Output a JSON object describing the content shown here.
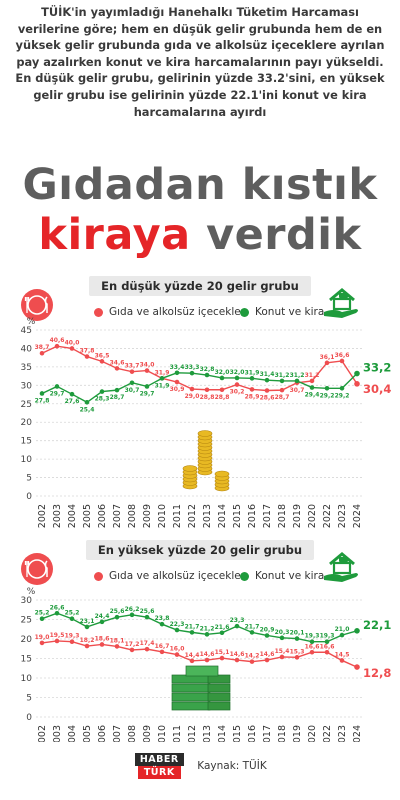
{
  "intro_text": "TÜİK'in yayımladığı Hanehalkı Tüketim Harcaması verilerine göre; hem en düşük gelir grubunda hem de en yüksek gelir grubunda gıda ve alkolsüz içeceklere ayrılan pay azalırken konut ve kira harcamalarının payı yükseldi. En düşük gelir grubu, gelirinin yüzde 33.2'sini, en yüksek gelir grubu ise gelirinin yüzde 22.1'ini konut ve kira harcamalarına ayırdı",
  "headline_line1": "Gıdadan kıstık",
  "headline_red": "kiraya",
  "headline_rest": " verdik",
  "footer": {
    "logo_top": "HABER",
    "logo_bottom": "TÜRK",
    "source": "Kaynak: TÜİK"
  },
  "colors": {
    "food": "#ef4d4f",
    "housing": "#1e9b3c",
    "headline": "#5e5e5e",
    "accent": "#e52528"
  },
  "icons": [
    "fork-knife-icon",
    "house-hand-icon",
    "coin-stack-icon",
    "money-stack-icon"
  ],
  "chart_data": [
    {
      "type": "line",
      "title": "En düşük yüzde 20 gelir grubu",
      "ylabel": "%",
      "ylim": [
        0,
        45
      ],
      "yticks": [
        0,
        5,
        10,
        15,
        20,
        25,
        30,
        35,
        40,
        45
      ],
      "x": [
        "2002",
        "2003",
        "2004",
        "2005",
        "2006",
        "2007",
        "2008",
        "2009",
        "2010",
        "2011",
        "2012",
        "2013",
        "2014",
        "2015",
        "2016",
        "2017",
        "2018",
        "2019",
        "2020",
        "2022",
        "2023",
        "2024"
      ],
      "legend_placement": "top",
      "grid": true,
      "series": [
        {
          "name": "Gıda ve alkolsüz içecekler",
          "color": "#ef4d4f",
          "values": [
            38.7,
            40.6,
            40.0,
            37.8,
            36.5,
            34.6,
            33.7,
            34.0,
            31.9,
            30.9,
            29.0,
            28.8,
            28.8,
            30.2,
            28.9,
            28.6,
            28.7,
            30.7,
            31.2,
            36.1,
            36.6,
            30.4
          ],
          "labels": [
            "38,7",
            "40,6",
            "40,0",
            "37,8",
            "36,5",
            "34,6",
            "33,7",
            "34,0",
            "31,9",
            "30,9",
            "29,0",
            "28,8",
            "28,8",
            "30,2",
            "28,9",
            "28,6",
            "28,7",
            "30,7",
            "31,2",
            "36,1",
            "36,6",
            "30,4"
          ]
        },
        {
          "name": "Konut ve kira",
          "color": "#1e9b3c",
          "values": [
            27.8,
            29.7,
            27.6,
            25.4,
            28.3,
            28.7,
            30.7,
            29.7,
            31.9,
            33.4,
            33.3,
            32.8,
            32.0,
            32.0,
            31.9,
            31.4,
            31.2,
            31.2,
            29.4,
            29.2,
            29.2,
            33.2
          ],
          "labels": [
            "27,8",
            "29,7",
            "27,6",
            "25,4",
            "28,3",
            "28,7",
            "30,7",
            "29,7",
            "31,9",
            "33,4",
            "33,3",
            "32,8",
            "32,0",
            "32,0",
            "31,9",
            "31,4",
            "31,2",
            "31,2",
            "29,4",
            "29,2",
            "29,2",
            "33,2"
          ]
        }
      ]
    },
    {
      "type": "line",
      "title": "En yüksek yüzde 20 gelir grubu",
      "ylabel": "%",
      "ylim": [
        0,
        30
      ],
      "yticks": [
        0,
        5,
        10,
        15,
        20,
        25,
        30
      ],
      "x": [
        "2002",
        "2003",
        "2004",
        "2005",
        "2006",
        "2007",
        "2008",
        "2009",
        "2010",
        "2011",
        "2012",
        "2013",
        "2014",
        "2015",
        "2016",
        "2017",
        "2018",
        "2019",
        "2020",
        "2022",
        "2023",
        "2024"
      ],
      "legend_placement": "top",
      "grid": true,
      "series": [
        {
          "name": "Gıda ve alkolsüz içecekler",
          "color": "#ef4d4f",
          "values": [
            19.0,
            19.5,
            19.3,
            18.2,
            18.6,
            18.1,
            17.2,
            17.4,
            16.7,
            16.0,
            14.4,
            14.6,
            15.1,
            14.6,
            14.2,
            14.6,
            15.4,
            15.3,
            16.6,
            16.6,
            14.5,
            12.8
          ],
          "labels": [
            "19,0",
            "19,5",
            "19,3",
            "18,2",
            "18,6",
            "18,1",
            "17,2",
            "17,4",
            "16,7",
            "16,0",
            "14,4",
            "14,6",
            "15,1",
            "14,6",
            "14,2",
            "14,6",
            "15,4",
            "15,3",
            "16,6",
            "16,6",
            "14,5",
            "12,8"
          ]
        },
        {
          "name": "Konut ve kira",
          "color": "#1e9b3c",
          "values": [
            25.2,
            26.6,
            25.2,
            23.1,
            24.4,
            25.6,
            26.2,
            25.6,
            23.8,
            22.3,
            21.7,
            21.2,
            21.6,
            23.3,
            21.7,
            20.9,
            20.3,
            20.1,
            19.3,
            19.3,
            21.0,
            22.1
          ],
          "labels": [
            "25,2",
            "26,6",
            "25,2",
            "23,1",
            "24,4",
            "25,6",
            "26,2",
            "25,6",
            "23,8",
            "22,3",
            "21,7",
            "21,2",
            "21,6",
            "23,3",
            "21,7",
            "20,9",
            "20,3",
            "20,1",
            "19,3",
            "19,3",
            "21,0",
            "22,1"
          ]
        }
      ]
    }
  ]
}
